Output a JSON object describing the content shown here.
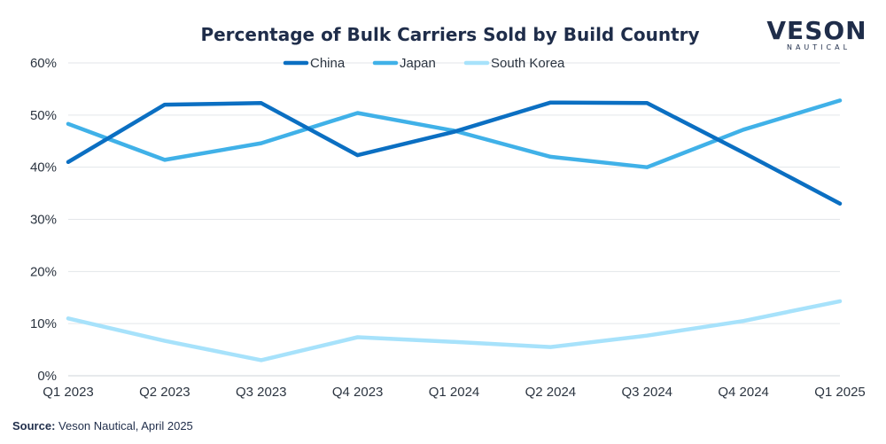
{
  "chart_data": {
    "type": "line",
    "title": "Percentage of Bulk Carriers Sold by Build Country",
    "categories": [
      "Q1 2023",
      "Q2 2023",
      "Q3 2023",
      "Q4 2023",
      "Q1 2024",
      "Q2 2024",
      "Q3 2024",
      "Q4 2024",
      "Q1 2025"
    ],
    "series": [
      {
        "name": "China",
        "color": "#0b6fc2",
        "values": [
          41,
          52,
          52.3,
          42.3,
          46.8,
          52.4,
          52.3,
          42.8,
          33
        ]
      },
      {
        "name": "Japan",
        "color": "#40b1e8",
        "values": [
          48.3,
          41.4,
          44.6,
          50.4,
          47,
          42,
          40,
          47.2,
          52.8
        ]
      },
      {
        "name": "South Korea",
        "color": "#a7e2fb",
        "values": [
          11,
          6.7,
          3,
          7.4,
          6.5,
          5.5,
          7.7,
          10.5,
          14.3
        ]
      }
    ],
    "ylim": [
      0,
      60
    ],
    "yticks": [
      0,
      10,
      20,
      30,
      40,
      50,
      60
    ],
    "ytick_labels": [
      "0%",
      "10%",
      "20%",
      "30%",
      "40%",
      "50%",
      "60%"
    ],
    "grid": true,
    "legend_position": "top-center"
  },
  "source": {
    "label": "Source:",
    "text": " Veson Nautical, April 2025"
  },
  "logo": {
    "main": "VESON",
    "sub": "NAUTICAL"
  }
}
